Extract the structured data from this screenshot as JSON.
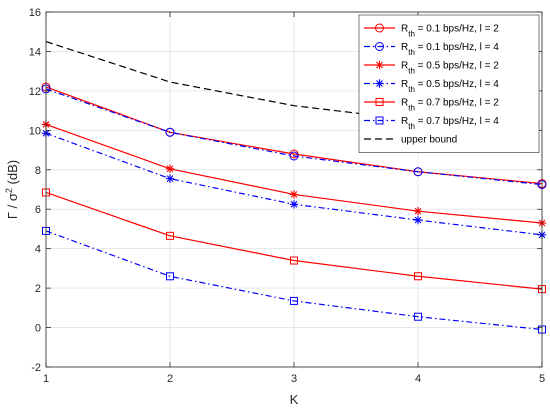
{
  "chart_data": {
    "type": "line",
    "title": "",
    "xlabel": "K",
    "ylabel_main": "Γ / σ",
    "ylabel_sup": "2",
    "ylabel_unit": " (dB)",
    "xlim": [
      1,
      5
    ],
    "ylim": [
      -2,
      16
    ],
    "xticks": [
      1,
      2,
      3,
      4,
      5
    ],
    "yticks": [
      -2,
      0,
      2,
      4,
      6,
      8,
      10,
      12,
      14,
      16
    ],
    "grid": true,
    "legend_position": "top-right",
    "x": [
      1,
      2,
      3,
      4,
      5
    ],
    "series": [
      {
        "name": "R_th = 0.1 bps/Hz, l = 2",
        "legend": {
          "prefix": "R",
          "sub": "th",
          "rest": " = 0.1 bps/Hz, l = 2"
        },
        "color": "#ff0000",
        "dash": "solid",
        "marker": "circle",
        "values": [
          12.2,
          9.9,
          8.8,
          7.9,
          7.3
        ]
      },
      {
        "name": "R_th = 0.1 bps/Hz, l = 4",
        "legend": {
          "prefix": "R",
          "sub": "th",
          "rest": " = 0.1 bps/Hz, l = 4"
        },
        "color": "#0000ff",
        "dash": "dashdot",
        "marker": "circle",
        "values": [
          12.1,
          9.9,
          8.7,
          7.9,
          7.25
        ]
      },
      {
        "name": "R_th = 0.5 bps/Hz, l = 2",
        "legend": {
          "prefix": "R",
          "sub": "th",
          "rest": " = 0.5 bps/Hz, l = 2"
        },
        "color": "#ff0000",
        "dash": "solid",
        "marker": "star",
        "values": [
          10.3,
          8.05,
          6.75,
          5.9,
          5.3
        ]
      },
      {
        "name": "R_th = 0.5 bps/Hz, l = 4",
        "legend": {
          "prefix": "R",
          "sub": "th",
          "rest": " = 0.5 bps/Hz, l = 4"
        },
        "color": "#0000ff",
        "dash": "dashdot",
        "marker": "star",
        "values": [
          9.85,
          7.55,
          6.25,
          5.45,
          4.7
        ]
      },
      {
        "name": "R_th = 0.7 bps/Hz, l = 2",
        "legend": {
          "prefix": "R",
          "sub": "th",
          "rest": " = 0.7 bps/Hz, l = 2"
        },
        "color": "#ff0000",
        "dash": "solid",
        "marker": "square",
        "values": [
          6.85,
          4.65,
          3.4,
          2.6,
          1.95
        ]
      },
      {
        "name": "R_th = 0.7 bps/Hz, l = 4",
        "legend": {
          "prefix": "R",
          "sub": "th",
          "rest": " = 0.7 bps/Hz, l = 4"
        },
        "color": "#0000ff",
        "dash": "dashdot",
        "marker": "square",
        "values": [
          4.9,
          2.6,
          1.35,
          0.55,
          -0.1
        ]
      },
      {
        "name": "upper bound",
        "legend": {
          "prefix": "",
          "sub": "",
          "rest": "upper bound"
        },
        "color": "#000000",
        "dash": "dashed",
        "marker": "none",
        "values": [
          14.5,
          12.45,
          11.25,
          10.5,
          10.0
        ]
      }
    ]
  }
}
